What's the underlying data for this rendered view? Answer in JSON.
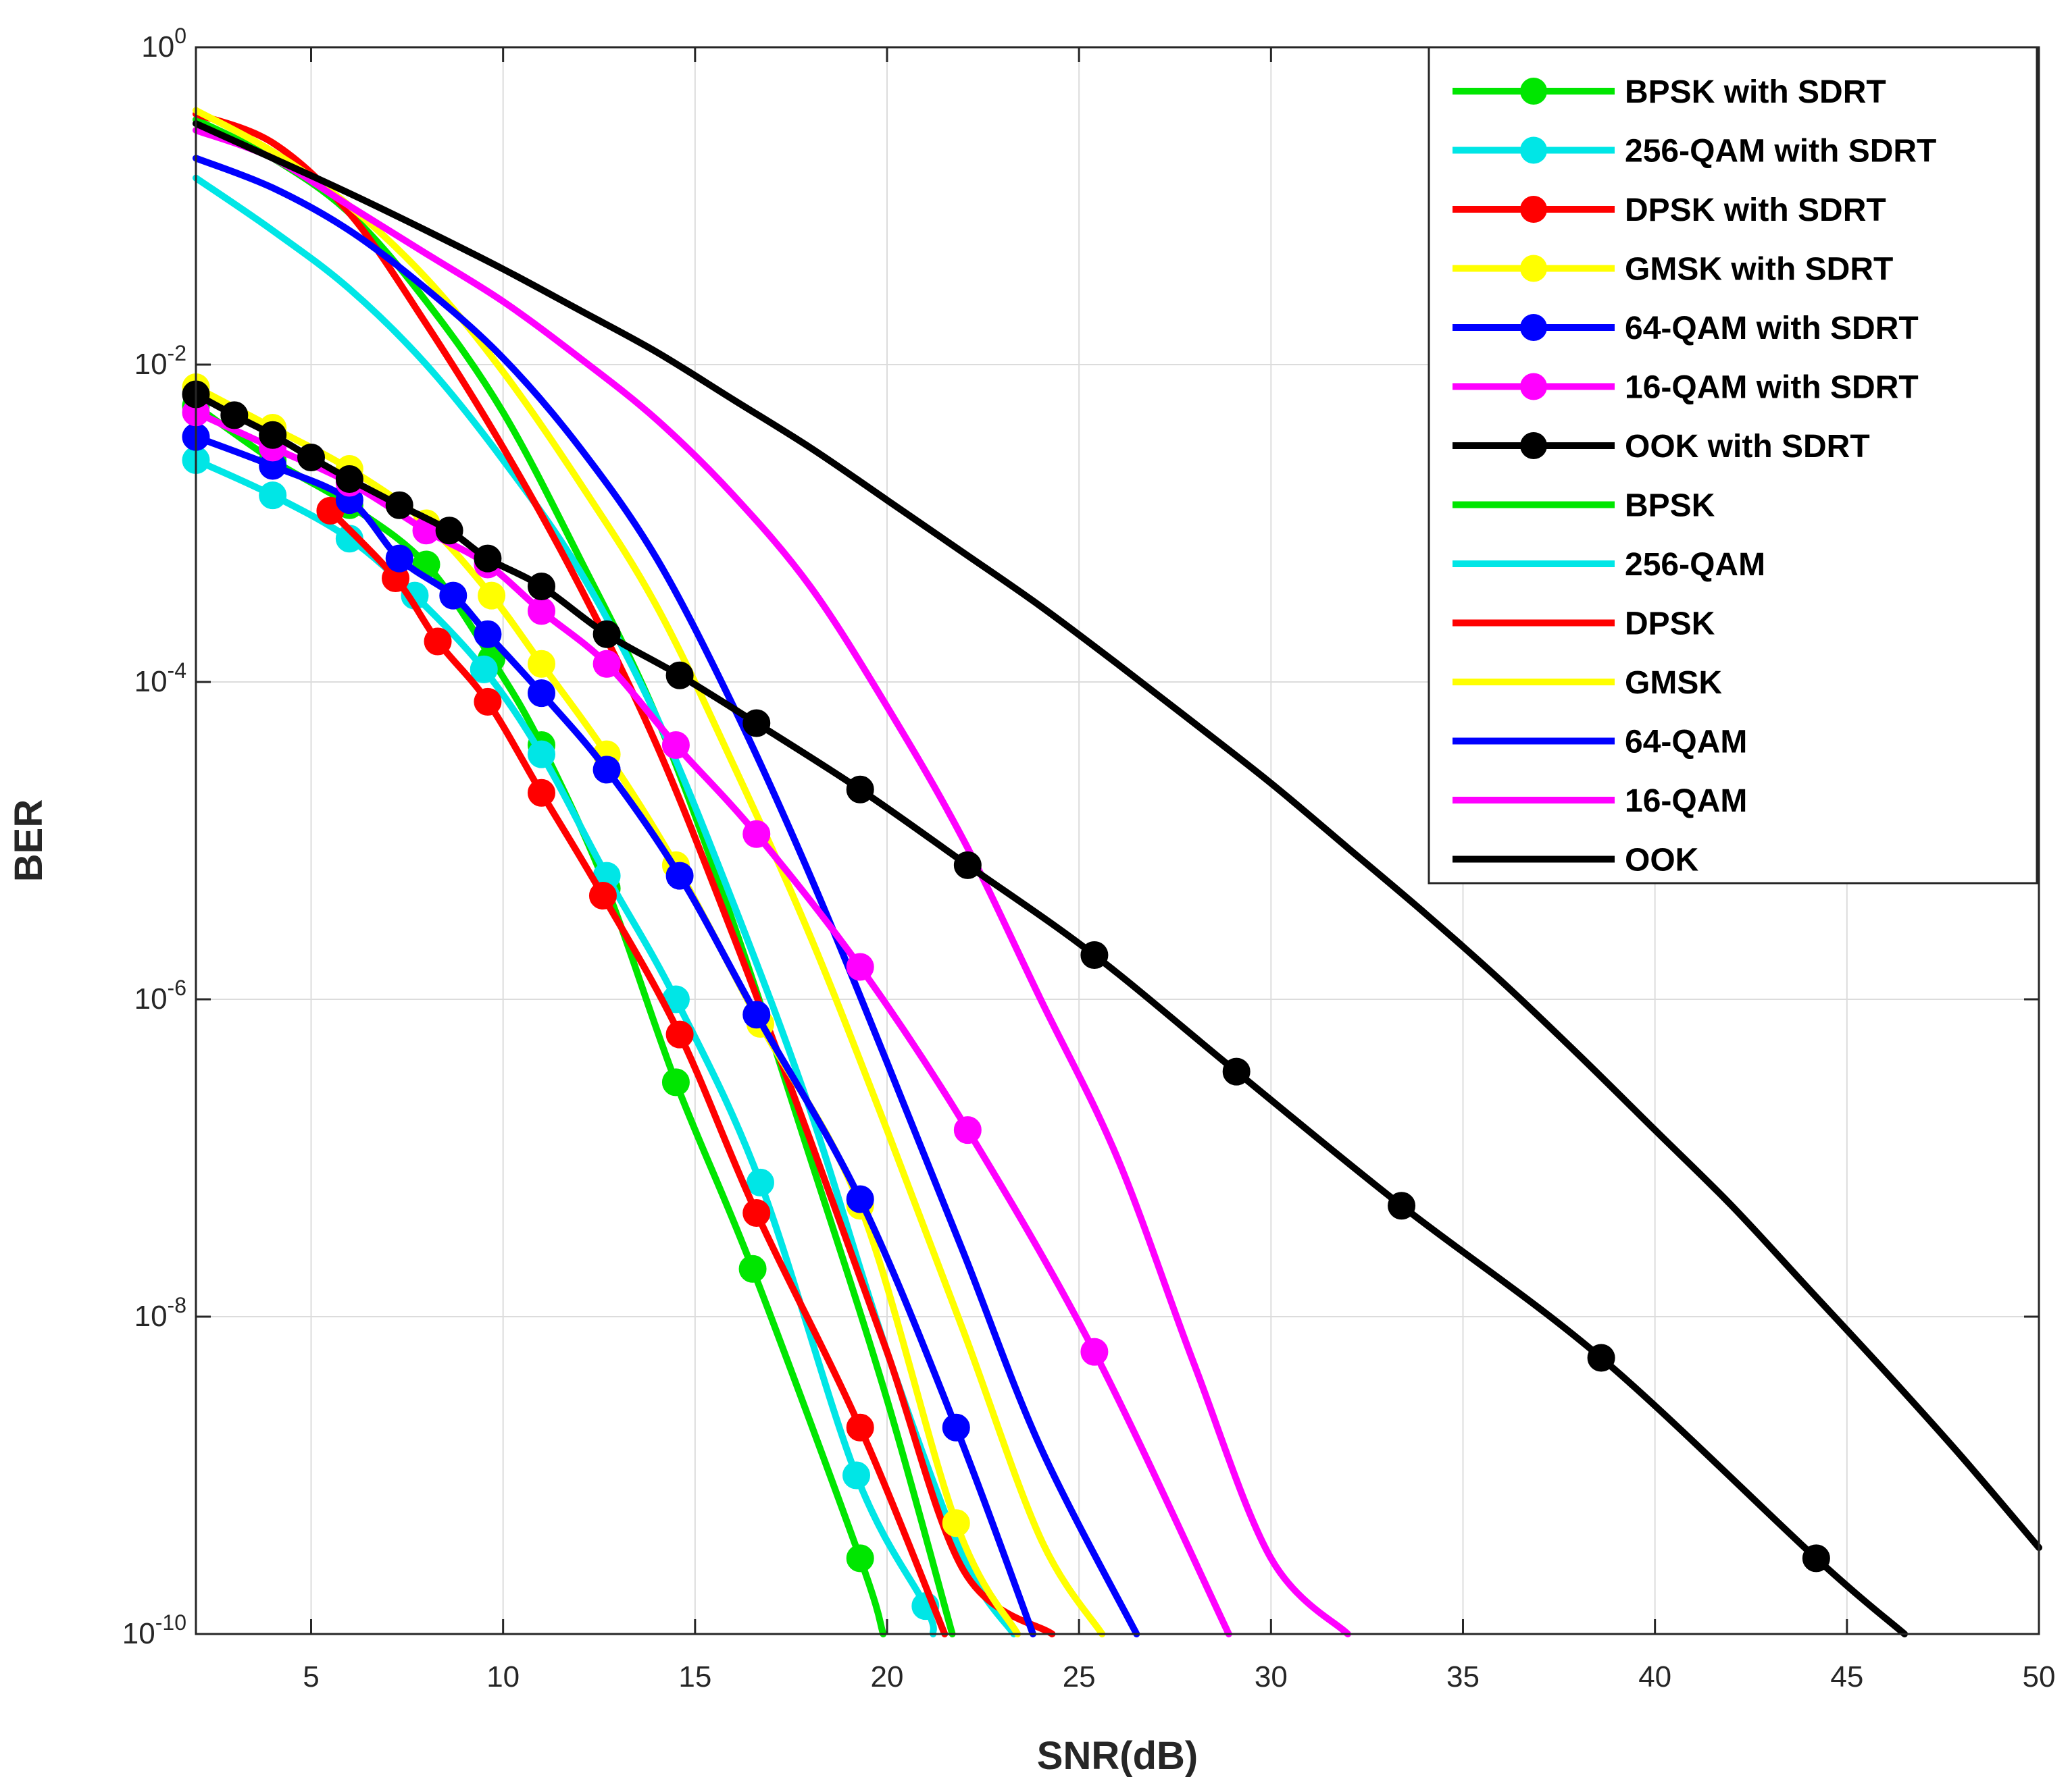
{
  "chart_data": {
    "type": "line",
    "title": "",
    "xlabel": "SNR(dB)",
    "ylabel": "BER",
    "xlim": [
      2,
      50
    ],
    "ylim": [
      1e-10,
      1
    ],
    "yscale": "log",
    "grid": true,
    "legend_position": "top-right",
    "x_ticks": [
      {
        "value": 5,
        "label": "5"
      },
      {
        "value": 10,
        "label": "10"
      },
      {
        "value": 15,
        "label": "15"
      },
      {
        "value": 20,
        "label": "20"
      },
      {
        "value": 25,
        "label": "25"
      },
      {
        "value": 30,
        "label": "30"
      },
      {
        "value": 35,
        "label": "35"
      },
      {
        "value": 40,
        "label": "40"
      },
      {
        "value": 45,
        "label": "45"
      },
      {
        "value": 50,
        "label": "50"
      }
    ],
    "y_ticks": [
      {
        "value": 1,
        "base": "10",
        "exp": "0"
      },
      {
        "value": 0.01,
        "base": "10",
        "exp": "-2"
      },
      {
        "value": 0.0001,
        "base": "10",
        "exp": "-4"
      },
      {
        "value": 1e-06,
        "base": "10",
        "exp": "-6"
      },
      {
        "value": 1e-08,
        "base": "10",
        "exp": "-8"
      },
      {
        "value": 1e-10,
        "base": "10",
        "exp": "-10"
      }
    ],
    "series": [
      {
        "name": "BPSK with SDRT",
        "color": "#00e600",
        "marker": true,
        "x": [
          2,
          4,
          6,
          8,
          9.7,
          11,
          12.7,
          14.5,
          16.5,
          19.3,
          19.9
        ],
        "y": [
          0.0055,
          0.0025,
          0.0013,
          0.00055,
          0.00014,
          4e-05,
          5e-06,
          3e-07,
          2e-08,
          3e-10,
          1e-10
        ]
      },
      {
        "name": "256-QAM with SDRT",
        "color": "#00e6e6",
        "marker": true,
        "x": [
          2,
          4,
          6,
          7.7,
          9.5,
          11,
          12.7,
          14.5,
          16.7,
          19.2,
          21,
          21.2
        ],
        "y": [
          0.0025,
          0.0015,
          0.0008,
          0.00035,
          0.00012,
          3.5e-05,
          6e-06,
          1e-06,
          7e-08,
          1e-09,
          1.5e-10,
          1e-10
        ]
      },
      {
        "name": "DPSK with SDRT",
        "color": "#ff0000",
        "marker": true,
        "x": [
          5.5,
          7.2,
          8.3,
          9.6,
          11,
          12.6,
          14.6,
          16.6,
          19.3,
          21.5
        ],
        "y": [
          0.0012,
          0.00045,
          0.00018,
          7.5e-05,
          2e-05,
          4.5e-06,
          6e-07,
          4.5e-08,
          2e-09,
          1e-10
        ]
      },
      {
        "name": "GMSK with SDRT",
        "color": "#ffff00",
        "marker": true,
        "x": [
          2,
          4,
          6,
          8,
          9.7,
          11,
          12.7,
          14.5,
          16.7,
          19.3,
          21.8,
          23.4
        ],
        "y": [
          0.0072,
          0.004,
          0.0022,
          0.001,
          0.00035,
          0.00013,
          3.5e-05,
          7e-06,
          7e-07,
          5e-08,
          5e-10,
          1e-10
        ]
      },
      {
        "name": "64-QAM with SDRT",
        "color": "#0000ff",
        "marker": true,
        "x": [
          2,
          4,
          6,
          7.3,
          8.7,
          9.6,
          11,
          12.7,
          14.6,
          16.6,
          19.3,
          21.8,
          23.8
        ],
        "y": [
          0.0035,
          0.0023,
          0.0014,
          0.0006,
          0.00035,
          0.0002,
          8.5e-05,
          2.8e-05,
          6e-06,
          8e-07,
          5.5e-08,
          2e-09,
          1e-10
        ]
      },
      {
        "name": "16-QAM with SDRT",
        "color": "#ff00ff",
        "marker": true,
        "x": [
          2,
          4,
          6,
          8,
          9.6,
          11,
          12.7,
          14.5,
          16.6,
          19.3,
          22.1,
          25.4,
          28.9
        ],
        "y": [
          0.005,
          0.003,
          0.0018,
          0.0009,
          0.00055,
          0.00028,
          0.00013,
          4e-05,
          1.1e-05,
          1.6e-06,
          1.5e-07,
          6e-09,
          1e-10
        ]
      },
      {
        "name": "OOK with SDRT",
        "color": "#000000",
        "marker": true,
        "x": [
          2,
          3,
          4,
          5,
          6,
          7.3,
          8.6,
          9.6,
          11,
          12.7,
          14.6,
          16.6,
          19.3,
          22.1,
          25.4,
          29.1,
          33.4,
          38.6,
          44.2,
          46.5
        ],
        "y": [
          0.0065,
          0.0048,
          0.0036,
          0.0026,
          0.0019,
          0.0013,
          0.0009,
          0.0006,
          0.0004,
          0.0002,
          0.00011,
          5.5e-05,
          2.1e-05,
          7e-06,
          1.9e-06,
          3.5e-07,
          5e-08,
          5.5e-09,
          3e-10,
          1e-10
        ]
      },
      {
        "name": "BPSK",
        "color": "#00e600",
        "marker": false,
        "x": [
          2,
          4,
          6,
          8,
          10,
          12,
          14,
          16,
          18,
          20,
          21.7
        ],
        "y": [
          0.35,
          0.2,
          0.09,
          0.025,
          0.005,
          0.0006,
          6e-05,
          3e-06,
          1e-07,
          3e-09,
          1e-10
        ]
      },
      {
        "name": "256-QAM",
        "color": "#00e6e6",
        "marker": false,
        "x": [
          2,
          4,
          6,
          8,
          10,
          12,
          14,
          16,
          18,
          20,
          22,
          23.3
        ],
        "y": [
          0.15,
          0.07,
          0.03,
          0.01,
          0.0025,
          0.0005,
          6e-05,
          4e-06,
          2e-07,
          6e-09,
          3e-10,
          1e-10
        ]
      },
      {
        "name": "DPSK",
        "color": "#ff0000",
        "marker": false,
        "x": [
          2,
          4,
          6,
          8,
          10,
          12,
          14,
          16,
          18,
          20,
          22,
          24.3
        ],
        "y": [
          0.38,
          0.25,
          0.09,
          0.018,
          0.003,
          0.0004,
          4e-05,
          2.5e-06,
          1.3e-07,
          6e-09,
          2.5e-10,
          1e-10
        ]
      },
      {
        "name": "GMSK",
        "color": "#ffff00",
        "marker": false,
        "x": [
          2,
          4,
          6,
          8,
          10,
          12,
          14,
          16,
          18,
          20,
          22,
          24,
          25.6
        ],
        "y": [
          0.4,
          0.22,
          0.1,
          0.035,
          0.009,
          0.0018,
          0.0003,
          3e-05,
          2.5e-06,
          1.5e-07,
          8e-09,
          4e-10,
          1e-10
        ]
      },
      {
        "name": "64-QAM",
        "color": "#0000ff",
        "marker": false,
        "x": [
          2,
          4,
          6,
          8,
          10,
          12,
          14,
          16,
          18,
          20,
          22,
          24,
          26.5
        ],
        "y": [
          0.2,
          0.13,
          0.07,
          0.03,
          0.011,
          0.003,
          0.0006,
          7e-05,
          6e-06,
          4e-07,
          2.5e-08,
          1.5e-09,
          1e-10
        ]
      },
      {
        "name": "16-QAM",
        "color": "#ff00ff",
        "marker": false,
        "x": [
          2,
          4,
          6,
          8,
          10,
          12,
          14,
          16,
          18,
          20,
          22,
          24,
          26,
          28,
          30,
          32
        ],
        "y": [
          0.3,
          0.2,
          0.1,
          0.05,
          0.025,
          0.011,
          0.0045,
          0.0015,
          0.0004,
          7e-05,
          1e-05,
          1e-06,
          1e-07,
          5e-09,
          3e-10,
          1e-10
        ]
      },
      {
        "name": "OOK",
        "color": "#000000",
        "marker": false,
        "x": [
          2,
          4,
          6,
          8,
          10,
          12,
          14,
          16,
          18,
          20,
          22,
          24,
          26,
          28,
          30,
          32,
          34,
          36,
          38,
          40,
          42,
          44,
          46,
          48,
          50
        ],
        "y": [
          0.33,
          0.2,
          0.12,
          0.07,
          0.04,
          0.022,
          0.012,
          0.006,
          0.003,
          0.0014,
          0.00065,
          0.0003,
          0.00013,
          5.5e-05,
          2.3e-05,
          9e-06,
          3.5e-06,
          1.3e-06,
          4.5e-07,
          1.5e-07,
          5e-08,
          1.5e-08,
          4.5e-09,
          1.3e-09,
          3.5e-10
        ]
      }
    ]
  }
}
